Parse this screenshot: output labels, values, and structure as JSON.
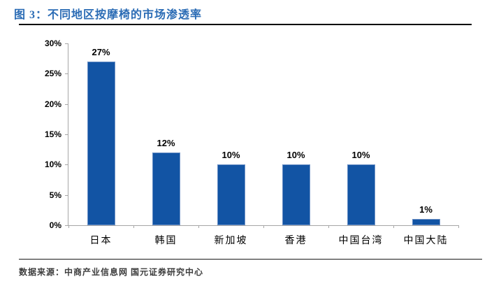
{
  "header": {
    "title": "图 3：不同地区按摩椅的市场渗透率"
  },
  "footer": {
    "source": "数据来源：中商产业信息网  国元证券研究中心"
  },
  "colors": {
    "bar": "#1254A4",
    "bar_border": "#6E92C6",
    "title": "#2B6CB5",
    "axis": "#A6A6A6"
  },
  "chart_data": {
    "type": "bar",
    "title": "不同地区按摩椅的市场渗透率",
    "categories": [
      "日本",
      "韩国",
      "新加坡",
      "香港",
      "中国台湾",
      "中国大陆"
    ],
    "values": [
      27,
      12,
      10,
      10,
      10,
      1
    ],
    "value_labels": [
      "27%",
      "12%",
      "10%",
      "10%",
      "10%",
      "1%"
    ],
    "y_ticks": [
      "30%",
      "25%",
      "20%",
      "15%",
      "10%",
      "5%",
      "0%"
    ],
    "ylim": [
      0,
      30
    ],
    "xlabel": "",
    "ylabel": "",
    "grid": false,
    "legend": false
  }
}
